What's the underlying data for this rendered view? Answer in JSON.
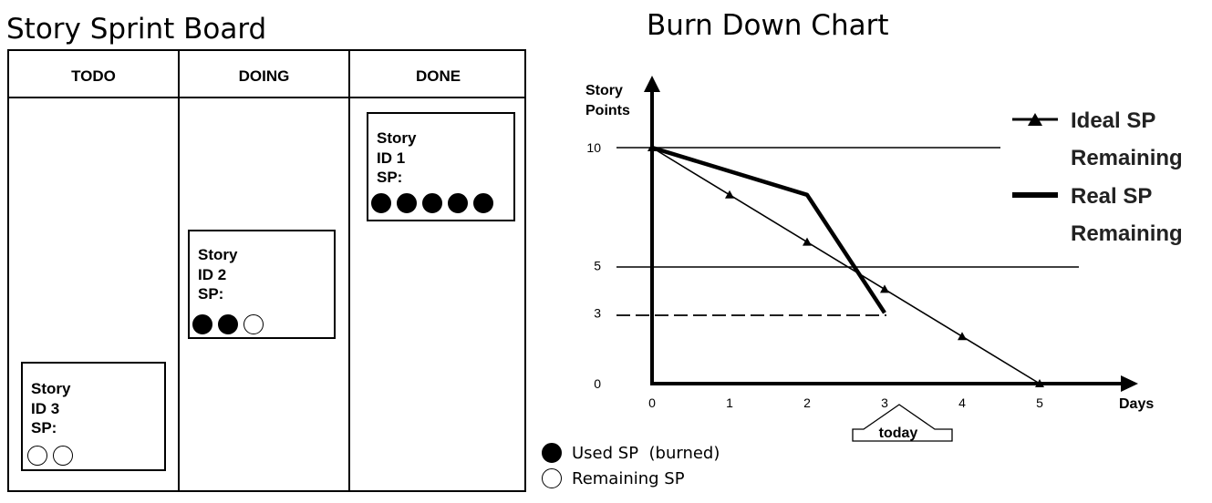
{
  "board": {
    "title": "Story Sprint Board",
    "columns": [
      {
        "label": "TODO"
      },
      {
        "label": "DOING"
      },
      {
        "label": "DONE"
      }
    ],
    "cards": [
      {
        "story_label": "Story",
        "id_label": "ID 3",
        "sp_label": "SP:",
        "used": 0,
        "remaining": 2
      },
      {
        "story_label": "Story",
        "id_label": "ID 2",
        "sp_label": "SP:",
        "used": 2,
        "remaining": 1
      },
      {
        "story_label": "Story",
        "id_label": "ID 1",
        "sp_label": "SP:",
        "used": 5,
        "remaining": 0
      }
    ]
  },
  "legend": {
    "used_label": "Used SP  (burned)",
    "remaining_label": "Remaining SP"
  },
  "chart": {
    "title": "Burn Down Chart",
    "y_label_line1": "Story",
    "y_label_line2": "Points",
    "x_label": "Days",
    "today_label": "today",
    "legend_ideal_line1": "Ideal SP",
    "legend_ideal_line2": "Remaining",
    "legend_real_line1": "Real SP",
    "legend_real_line2": "Remaining"
  },
  "chart_data": {
    "type": "line",
    "title": "Burn Down Chart",
    "xlabel": "Days",
    "ylabel": "Story Points",
    "x_ticks": [
      "0",
      "1",
      "2",
      "3",
      "4",
      "5"
    ],
    "y_ticks": [
      "0",
      "3",
      "5",
      "10"
    ],
    "xlim": [
      0,
      5
    ],
    "ylim": [
      0,
      10
    ],
    "series": [
      {
        "name": "Ideal SP Remaining",
        "x": [
          0,
          1,
          2,
          3,
          4,
          5
        ],
        "y": [
          10,
          8,
          6,
          4,
          2,
          0
        ],
        "marker": "triangle"
      },
      {
        "name": "Real SP Remaining",
        "x": [
          0,
          2,
          3
        ],
        "y": [
          10,
          8,
          3
        ]
      }
    ],
    "reference_lines": [
      10,
      5
    ],
    "dashed_marker": {
      "y": 3,
      "x_end": 3
    },
    "annotation": {
      "text": "today",
      "x": 3
    },
    "legend_position": "top-right"
  }
}
